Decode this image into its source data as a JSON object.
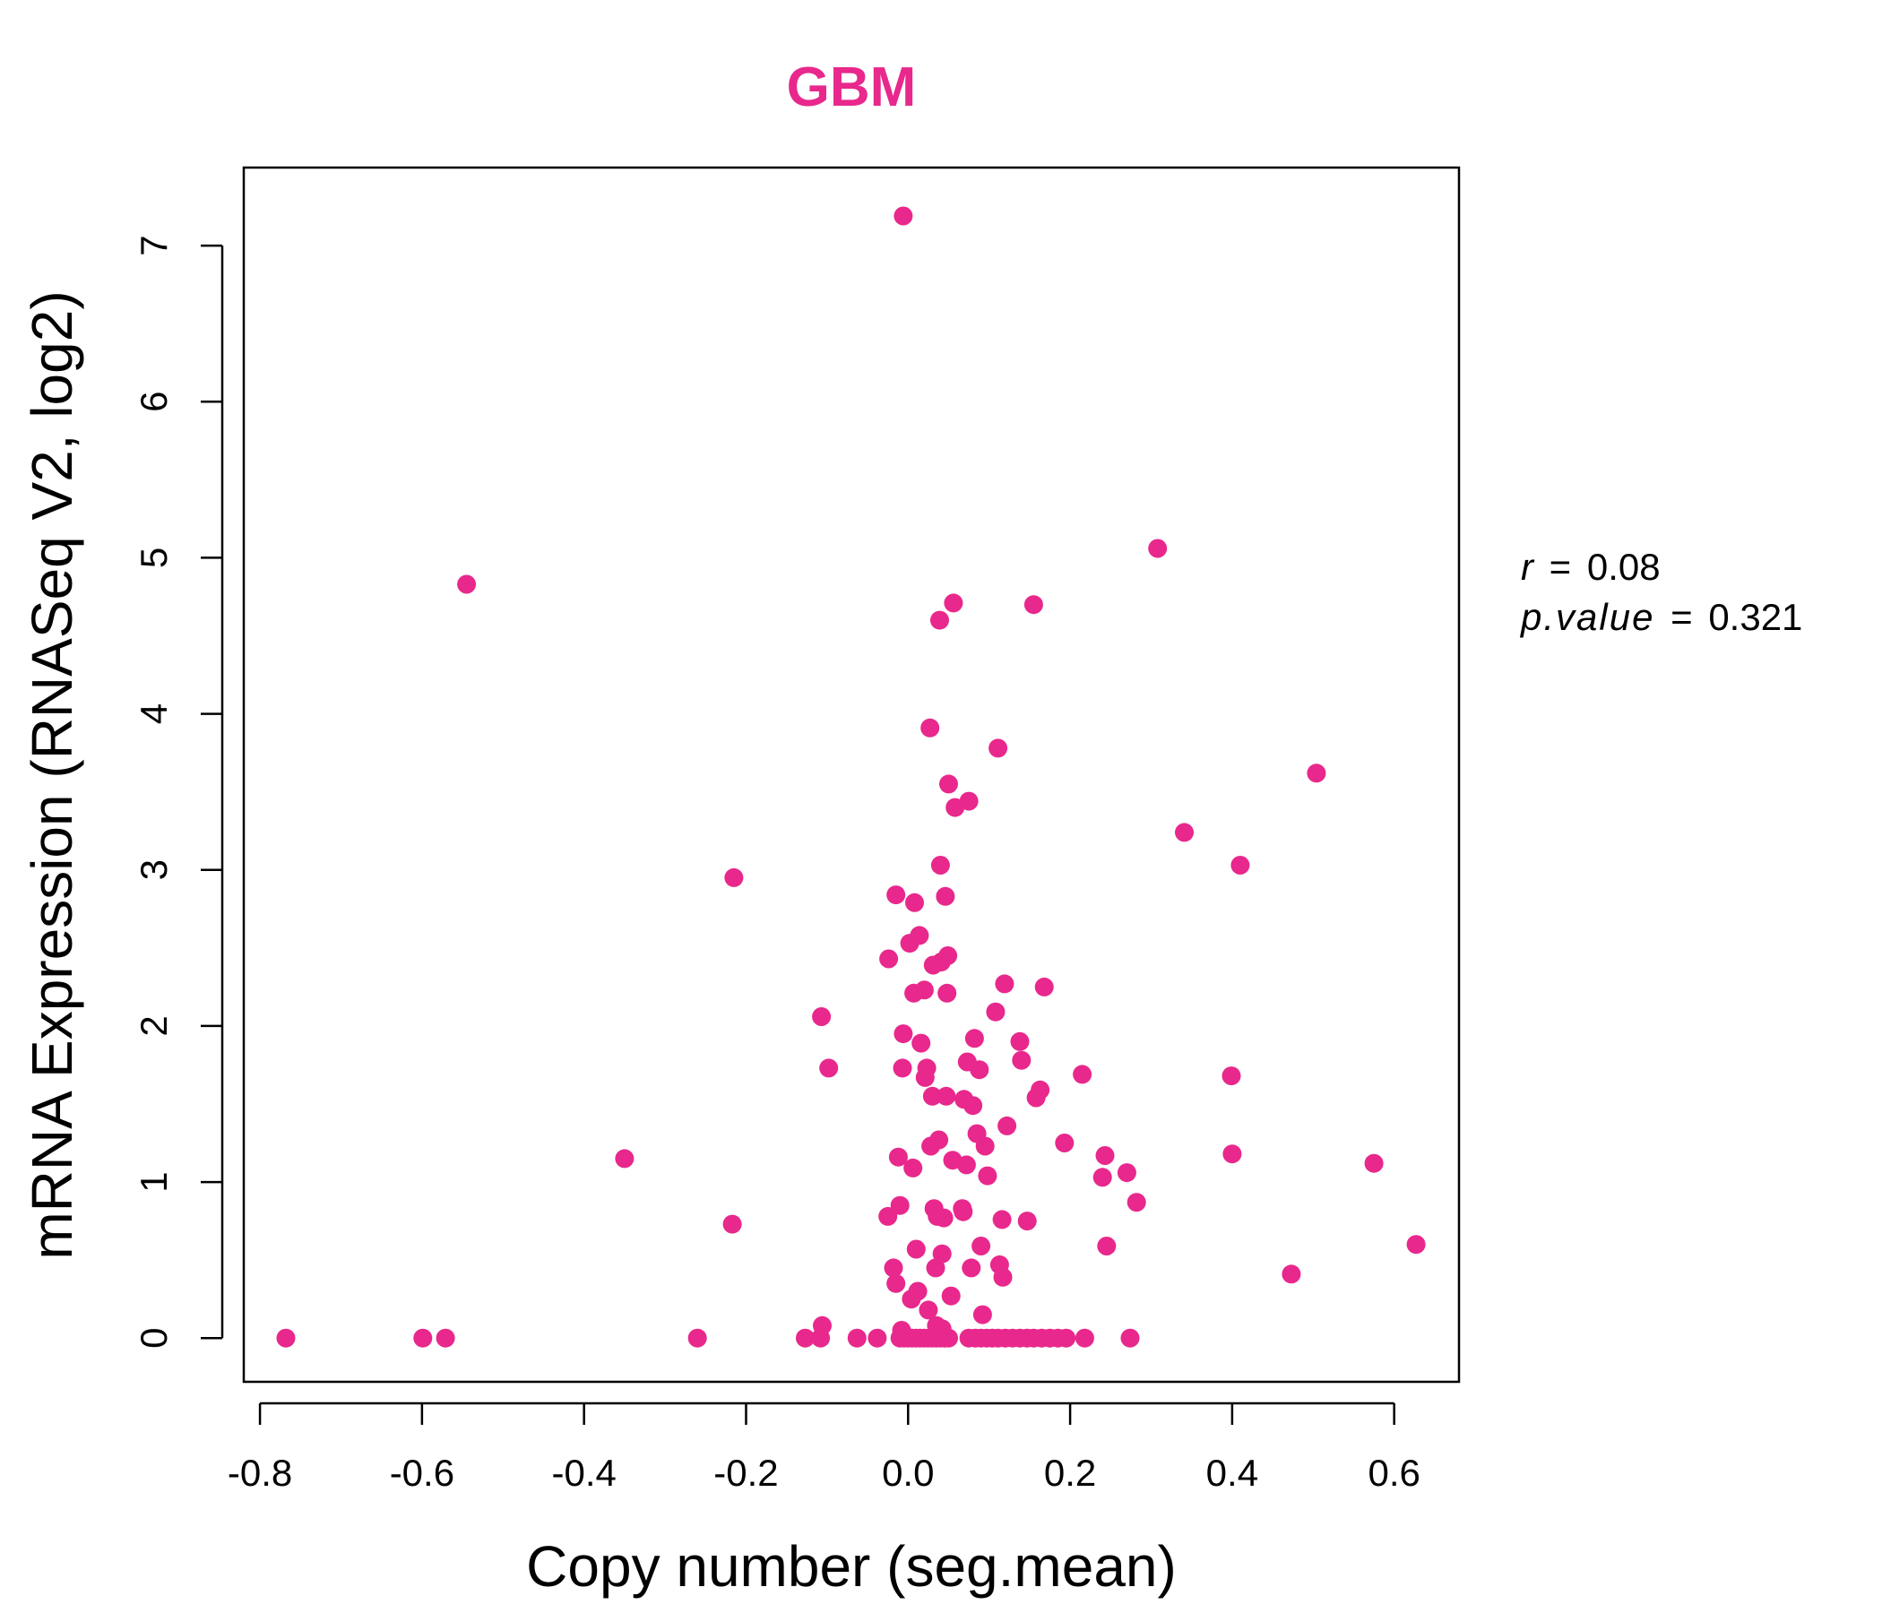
{
  "chart_data": {
    "type": "scatter",
    "title": "GBM",
    "xlabel": "Copy number (seg.mean)",
    "ylabel": "mRNA Expression (RNASeq V2, log2)",
    "xlim": [
      -0.82,
      0.68
    ],
    "ylim": [
      -0.28,
      7.5
    ],
    "xticks": [
      -0.8,
      -0.6,
      -0.4,
      -0.2,
      0.0,
      0.2,
      0.4,
      0.6
    ],
    "xtick_labels": [
      "-0.8",
      "-0.6",
      "-0.4",
      "-0.2",
      "0.0",
      "0.2",
      "0.4",
      "0.6"
    ],
    "yticks": [
      0,
      1,
      2,
      3,
      4,
      5,
      6,
      7
    ],
    "ytick_labels": [
      "0",
      "1",
      "2",
      "3",
      "4",
      "5",
      "6",
      "7"
    ],
    "grid": false,
    "legend": "none",
    "color": "#E8288C",
    "stats": {
      "r_symbol": "r",
      "r_value": "0.08",
      "p_symbol": "p.value",
      "p_value": "0.321",
      "eq": "="
    },
    "points": [
      [
        -0.768,
        0
      ],
      [
        -0.599,
        0
      ],
      [
        -0.571,
        0
      ],
      [
        -0.545,
        4.83
      ],
      [
        -0.35,
        1.15
      ],
      [
        -0.26,
        0
      ],
      [
        -0.215,
        2.95
      ],
      [
        -0.217,
        0.73
      ],
      [
        -0.127,
        0
      ],
      [
        -0.108,
        0
      ],
      [
        -0.106,
        0.08
      ],
      [
        -0.107,
        2.06
      ],
      [
        -0.098,
        1.73
      ],
      [
        -0.063,
        0
      ],
      [
        -0.038,
        0
      ],
      [
        -0.006,
        7.19
      ],
      [
        -0.024,
        2.43
      ],
      [
        -0.025,
        0.78
      ],
      [
        -0.015,
        2.84
      ],
      [
        -0.018,
        0.45
      ],
      [
        -0.015,
        0.35
      ],
      [
        -0.012,
        1.16
      ],
      [
        -0.01,
        0.85
      ],
      [
        -0.006,
        1.95
      ],
      [
        -0.007,
        1.73
      ],
      [
        -0.008,
        0.05
      ],
      [
        0.002,
        2.53
      ],
      [
        0.004,
        0.25
      ],
      [
        0.006,
        1.09
      ],
      [
        0.007,
        2.21
      ],
      [
        0.008,
        2.79
      ],
      [
        0.01,
        0.57
      ],
      [
        0.012,
        0.3
      ],
      [
        0.014,
        2.58
      ],
      [
        0.016,
        1.89
      ],
      [
        0.02,
        2.23
      ],
      [
        0.021,
        1.67
      ],
      [
        0.023,
        1.73
      ],
      [
        0.025,
        0.18
      ],
      [
        0.027,
        3.91
      ],
      [
        0.028,
        1.23
      ],
      [
        0.03,
        1.55
      ],
      [
        0.031,
        2.39
      ],
      [
        0.032,
        0.83
      ],
      [
        0.034,
        0.45
      ],
      [
        0.036,
        0.78
      ],
      [
        0.038,
        1.27
      ],
      [
        0.039,
        4.6
      ],
      [
        0.04,
        3.03
      ],
      [
        0.041,
        2.41
      ],
      [
        0.042,
        0.54
      ],
      [
        0.044,
        0.77
      ],
      [
        0.046,
        2.83
      ],
      [
        0.047,
        1.55
      ],
      [
        0.048,
        2.21
      ],
      [
        0.049,
        2.45
      ],
      [
        0.05,
        3.55
      ],
      [
        0.053,
        0.27
      ],
      [
        0.055,
        1.14
      ],
      [
        0.056,
        4.71
      ],
      [
        0.058,
        3.4
      ],
      [
        0.067,
        0.83
      ],
      [
        0.068,
        0.81
      ],
      [
        0.069,
        1.53
      ],
      [
        0.072,
        1.11
      ],
      [
        0.073,
        1.77
      ],
      [
        0.075,
        3.44
      ],
      [
        0.078,
        0.45
      ],
      [
        0.08,
        1.49
      ],
      [
        0.082,
        1.92
      ],
      [
        0.085,
        1.31
      ],
      [
        0.088,
        1.72
      ],
      [
        0.09,
        0.59
      ],
      [
        0.092,
        0.15
      ],
      [
        0.095,
        1.23
      ],
      [
        0.098,
        1.04
      ],
      [
        0.108,
        2.09
      ],
      [
        0.111,
        3.78
      ],
      [
        0.113,
        0.47
      ],
      [
        0.116,
        0.76
      ],
      [
        0.117,
        0.39
      ],
      [
        0.119,
        2.27
      ],
      [
        0.122,
        1.36
      ],
      [
        0.138,
        1.9
      ],
      [
        0.14,
        1.78
      ],
      [
        0.147,
        0.75
      ],
      [
        0.155,
        4.7
      ],
      [
        0.158,
        1.54
      ],
      [
        0.163,
        1.59
      ],
      [
        0.168,
        2.25
      ],
      [
        0.193,
        1.25
      ],
      [
        0.215,
        1.69
      ],
      [
        0.24,
        1.03
      ],
      [
        0.243,
        1.17
      ],
      [
        0.245,
        0.59
      ],
      [
        0.27,
        1.06
      ],
      [
        0.282,
        0.87
      ],
      [
        0.308,
        5.06
      ],
      [
        0.341,
        3.24
      ],
      [
        0.399,
        1.68
      ],
      [
        0.4,
        1.18
      ],
      [
        0.41,
        3.03
      ],
      [
        0.473,
        0.41
      ],
      [
        0.504,
        3.62
      ],
      [
        0.575,
        1.12
      ],
      [
        0.627,
        0.6
      ],
      [
        0.274,
        0
      ],
      [
        -0.01,
        0
      ],
      [
        -0.005,
        0
      ],
      [
        0.0,
        0
      ],
      [
        0.005,
        0
      ],
      [
        0.01,
        0
      ],
      [
        0.015,
        0
      ],
      [
        0.02,
        0
      ],
      [
        0.025,
        0
      ],
      [
        0.03,
        0
      ],
      [
        0.035,
        0
      ],
      [
        0.04,
        0
      ],
      [
        0.045,
        0
      ],
      [
        0.05,
        0
      ],
      [
        0.035,
        0.08
      ],
      [
        0.042,
        0.06
      ],
      [
        0.075,
        0
      ],
      [
        0.083,
        0
      ],
      [
        0.09,
        0
      ],
      [
        0.097,
        0
      ],
      [
        0.104,
        0
      ],
      [
        0.111,
        0
      ],
      [
        0.12,
        0
      ],
      [
        0.129,
        0
      ],
      [
        0.138,
        0
      ],
      [
        0.147,
        0
      ],
      [
        0.155,
        0
      ],
      [
        0.165,
        0
      ],
      [
        0.175,
        0
      ],
      [
        0.185,
        0
      ],
      [
        0.195,
        0
      ],
      [
        0.218,
        0
      ]
    ]
  }
}
